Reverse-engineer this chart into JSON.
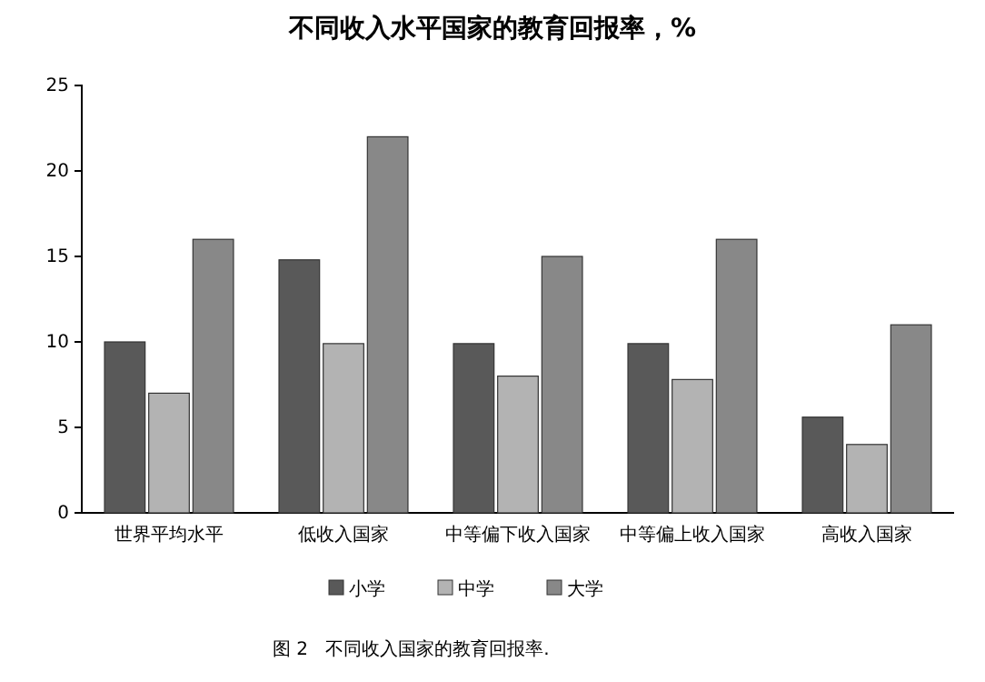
{
  "chart_data": {
    "type": "bar",
    "title": "不同收入水平国家的教育回报率，%",
    "categories": [
      "世界平均水平",
      "低收入国家",
      "中等偏下收入国家",
      "中等偏上收入国家",
      "高收入国家"
    ],
    "series": [
      {
        "name": "小学",
        "color": "#595959",
        "values": [
          10,
          14.8,
          9.9,
          9.9,
          5.6
        ]
      },
      {
        "name": "中学",
        "color": "#b3b3b3",
        "values": [
          7,
          9.9,
          8,
          7.8,
          4
        ]
      },
      {
        "name": "大学",
        "color": "#888888",
        "values": [
          16,
          22,
          15,
          16,
          11
        ]
      }
    ],
    "ylim": [
      0,
      25
    ],
    "yticks": [
      0,
      5,
      10,
      15,
      20,
      25
    ],
    "grid": false,
    "legend": "bottom",
    "annotations": [
      "图 2   不同收入国家的教育回报率."
    ]
  }
}
